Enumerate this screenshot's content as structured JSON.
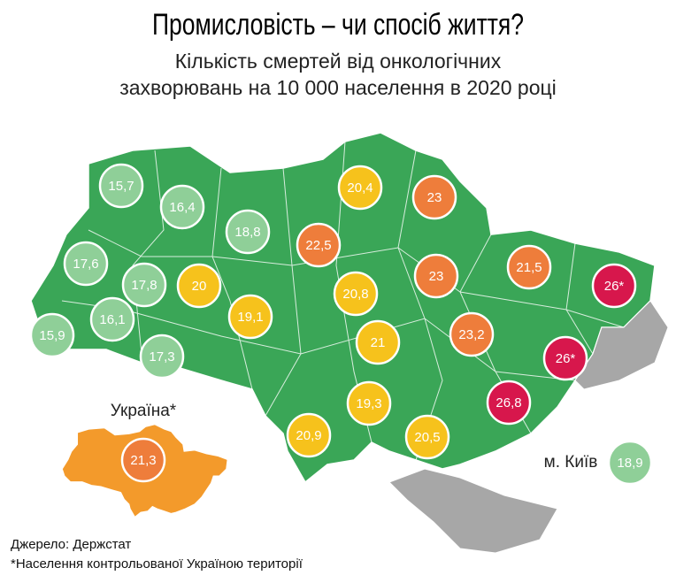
{
  "title": "Промисловість – чи спосіб життя?",
  "subtitle": [
    "Кількість смертей від онкологічних",
    "захворювань на 10 000 населення в 2020 році"
  ],
  "regions": [
    {
      "label": "15,7",
      "color": "#8fcf98"
    },
    {
      "label": "16,4",
      "color": "#8fcf98"
    },
    {
      "label": "18,8",
      "color": "#8fcf98"
    },
    {
      "label": "20,4",
      "color": "#f6c21c"
    },
    {
      "label": "23",
      "color": "#ee7d3b"
    },
    {
      "label": "22,5",
      "color": "#ee7d3b"
    },
    {
      "label": "17,6",
      "color": "#8fcf98"
    },
    {
      "label": "17,8",
      "color": "#8fcf98"
    },
    {
      "label": "20",
      "color": "#f6c21c"
    },
    {
      "label": "20,8",
      "color": "#f6c21c"
    },
    {
      "label": "23",
      "color": "#ee7d3b"
    },
    {
      "label": "21,5",
      "color": "#ee7d3b"
    },
    {
      "label": "26*",
      "color": "#d7174c"
    },
    {
      "label": "16,1",
      "color": "#8fcf98"
    },
    {
      "label": "15,9",
      "color": "#8fcf98"
    },
    {
      "label": "19,1",
      "color": "#f6c21c"
    },
    {
      "label": "21",
      "color": "#f6c21c"
    },
    {
      "label": "23,2",
      "color": "#ee7d3b"
    },
    {
      "label": "26*",
      "color": "#d7174c"
    },
    {
      "label": "17,3",
      "color": "#8fcf98"
    },
    {
      "label": "19,3",
      "color": "#f6c21c"
    },
    {
      "label": "26,8",
      "color": "#d7174c"
    },
    {
      "label": "20,9",
      "color": "#f6c21c"
    },
    {
      "label": "20,5",
      "color": "#f6c21c"
    }
  ],
  "ukraine": {
    "name": "Україна*",
    "label": "21,3",
    "color": "#ee7d3b"
  },
  "kyiv": {
    "name": "м. Київ",
    "label": "18,9",
    "color": "#8fcf98"
  },
  "footer": [
    "Джерело: Держстат",
    "*Населення контрольованої Україною території"
  ]
}
